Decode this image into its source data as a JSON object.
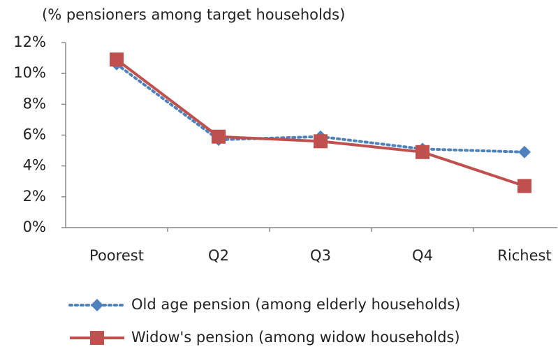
{
  "chart_data": {
    "type": "line",
    "title": "(% pensioners among target households)",
    "categories": [
      "Poorest",
      "Q2",
      "Q3",
      "Q4",
      "Richest"
    ],
    "series": [
      {
        "name": "Old age pension (among elderly households)",
        "color": "#4f81bd",
        "style": "dotted",
        "marker": "diamond",
        "values": [
          10.6,
          5.7,
          5.9,
          5.1,
          4.9
        ]
      },
      {
        "name": "Widow's pension (among widow households)",
        "color": "#c0504d",
        "style": "solid",
        "marker": "square",
        "values": [
          10.9,
          5.9,
          5.6,
          4.9,
          2.7
        ]
      }
    ],
    "ylim": [
      0,
      12
    ],
    "yticks": [
      {
        "value": 0,
        "label": "0%"
      },
      {
        "value": 2,
        "label": "2%"
      },
      {
        "value": 4,
        "label": "4%"
      },
      {
        "value": 6,
        "label": "6%"
      },
      {
        "value": 8,
        "label": "8%"
      },
      {
        "value": 10,
        "label": "10%"
      },
      {
        "value": 12,
        "label": "12%"
      }
    ],
    "grid": false,
    "legend": "bottom"
  }
}
